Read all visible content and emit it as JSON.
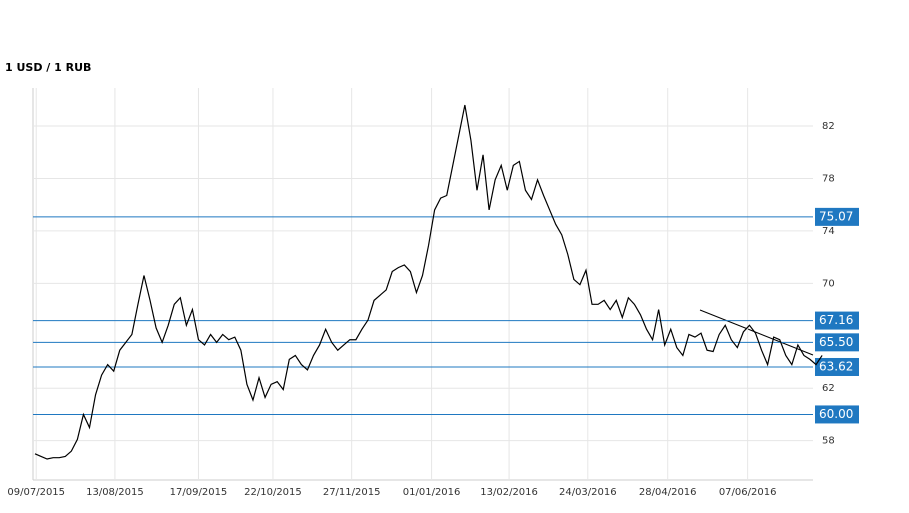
{
  "chart_data": {
    "type": "line",
    "title": "1 USD / 1 RUB",
    "series": [
      {
        "name": "USD/RUB",
        "color": "#000000",
        "values": [
          57.0,
          56.8,
          56.6,
          56.7,
          56.7,
          56.8,
          57.2,
          58.1,
          60.0,
          59.0,
          61.5,
          63.0,
          63.8,
          63.3,
          64.9,
          65.5,
          66.1,
          68.4,
          70.6,
          68.7,
          66.6,
          65.5,
          66.8,
          68.4,
          68.9,
          66.8,
          68.0,
          65.7,
          65.3,
          66.1,
          65.5,
          66.1,
          65.7,
          65.9,
          64.9,
          62.3,
          61.1,
          62.8,
          61.3,
          62.3,
          62.5,
          61.9,
          64.2,
          64.5,
          63.8,
          63.4,
          64.5,
          65.3,
          66.5,
          65.5,
          64.9,
          65.3,
          65.7,
          65.7,
          66.5,
          67.2,
          68.7,
          69.1,
          69.5,
          70.9,
          71.2,
          71.4,
          70.9,
          69.3,
          70.6,
          72.9,
          75.6,
          76.5,
          76.7,
          79.0,
          81.3,
          83.6,
          80.9,
          77.1,
          79.8,
          75.6,
          77.9,
          79.0,
          77.1,
          79.0,
          79.3,
          77.1,
          76.4,
          77.9,
          76.7,
          75.6,
          74.5,
          73.7,
          72.2,
          70.3,
          69.9,
          71.0,
          68.4,
          68.4,
          68.7,
          68.0,
          68.7,
          67.4,
          68.9,
          68.4,
          67.6,
          66.5,
          65.7,
          68.0,
          65.3,
          66.5,
          65.1,
          64.5,
          66.1,
          65.9,
          66.2,
          64.9,
          64.8,
          66.1,
          66.8,
          65.7,
          65.1,
          66.3,
          66.8,
          66.2,
          64.9,
          63.8,
          65.9,
          65.7,
          64.5,
          63.8,
          65.3,
          64.5,
          64.2,
          63.8,
          64.5
        ]
      }
    ],
    "xlim": [
      0,
      128
    ],
    "xticks": [
      {
        "value": 0.2,
        "label": "09/07/2015"
      },
      {
        "value": 13.2,
        "label": "13/08/2015"
      },
      {
        "value": 27,
        "label": "17/09/2015"
      },
      {
        "value": 39.3,
        "label": "22/10/2015"
      },
      {
        "value": 52.3,
        "label": "27/11/2015"
      },
      {
        "value": 65.5,
        "label": "01/01/2016"
      },
      {
        "value": 78.3,
        "label": "13/02/2016"
      },
      {
        "value": 91.3,
        "label": "24/03/2016"
      },
      {
        "value": 104.5,
        "label": "28/04/2016"
      },
      {
        "value": 117.7,
        "label": "07/06/2016"
      }
    ],
    "ylim": [
      55,
      84.9
    ],
    "yticks": [
      58,
      62,
      70,
      74,
      78,
      82
    ],
    "levels": [
      {
        "value": 75.07,
        "label": "75.07"
      },
      {
        "value": 67.16,
        "label": "67.16"
      },
      {
        "value": 65.5,
        "label": "65.50"
      },
      {
        "value": 63.62,
        "label": "63.62"
      },
      {
        "value": 60,
        "label": "60.00"
      }
    ],
    "level_color": "#1f78c1",
    "grid": true
  }
}
